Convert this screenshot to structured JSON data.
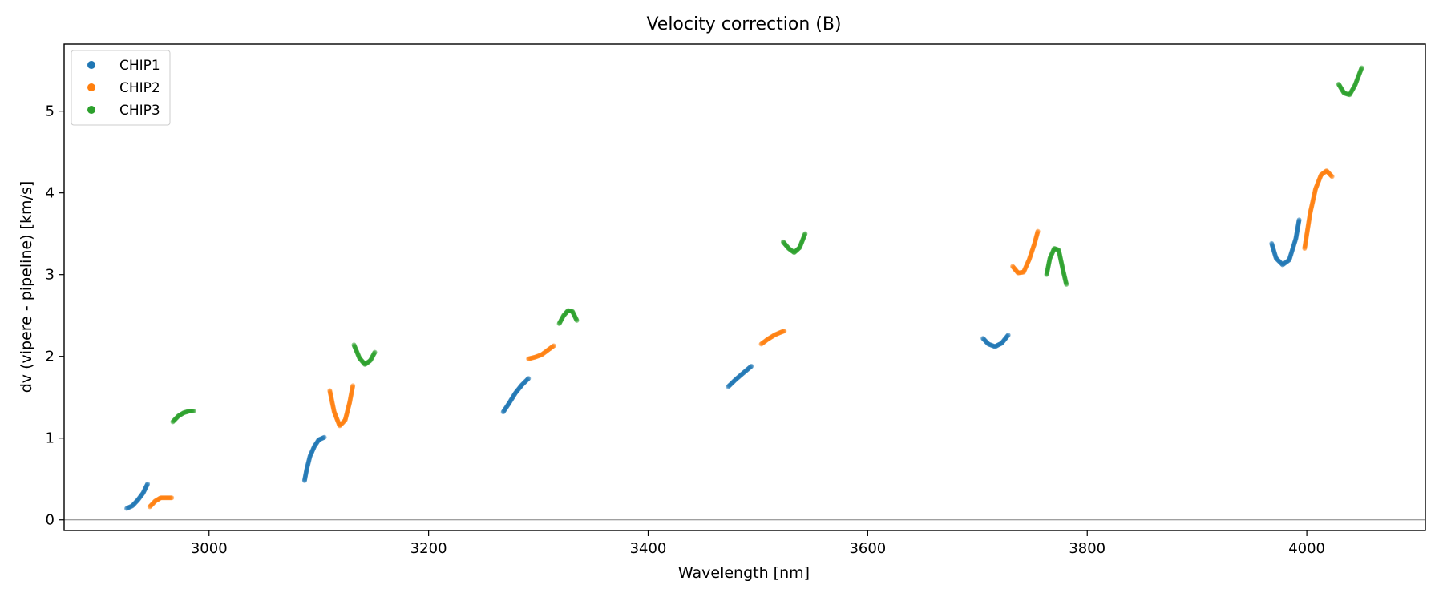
{
  "chart_data": {
    "type": "scatter",
    "title": "Velocity correction (B)",
    "xlabel": "Wavelength [nm]",
    "ylabel": "dv (vipere - pipeline) [km/s]",
    "xlim": [
      2868,
      4108
    ],
    "ylim": [
      -0.13,
      5.82
    ],
    "x_ticks": [
      3000,
      3200,
      3400,
      3600,
      3800,
      4000
    ],
    "y_ticks": [
      0,
      1,
      2,
      3,
      4,
      5
    ],
    "zero_line": true,
    "grid": false,
    "legend_position": "upper left",
    "series": [
      {
        "name": "CHIP1",
        "color": "#1f77b4",
        "segments": [
          [
            [
              2925,
              0.14
            ],
            [
              2930,
              0.17
            ],
            [
              2935,
              0.24
            ],
            [
              2940,
              0.33
            ],
            [
              2944,
              0.44
            ]
          ],
          [
            [
              3087,
              0.48
            ],
            [
              3089,
              0.62
            ],
            [
              3092,
              0.78
            ],
            [
              3096,
              0.9
            ],
            [
              3100,
              0.98
            ],
            [
              3105,
              1.01
            ]
          ],
          [
            [
              3268,
              1.32
            ],
            [
              3273,
              1.42
            ],
            [
              3279,
              1.55
            ],
            [
              3285,
              1.65
            ],
            [
              3291,
              1.73
            ]
          ],
          [
            [
              3473,
              1.63
            ],
            [
              3480,
              1.72
            ],
            [
              3487,
              1.8
            ],
            [
              3494,
              1.88
            ]
          ],
          [
            [
              3705,
              2.22
            ],
            [
              3710,
              2.15
            ],
            [
              3716,
              2.12
            ],
            [
              3722,
              2.16
            ],
            [
              3728,
              2.26
            ]
          ],
          [
            [
              3968,
              3.38
            ],
            [
              3972,
              3.2
            ],
            [
              3978,
              3.12
            ],
            [
              3984,
              3.18
            ],
            [
              3990,
              3.44
            ],
            [
              3993,
              3.67
            ]
          ]
        ]
      },
      {
        "name": "CHIP2",
        "color": "#ff7f0e",
        "segments": [
          [
            [
              2946,
              0.16
            ],
            [
              2951,
              0.23
            ],
            [
              2956,
              0.27
            ],
            [
              2961,
              0.27
            ],
            [
              2966,
              0.27
            ]
          ],
          [
            [
              3110,
              1.58
            ],
            [
              3114,
              1.32
            ],
            [
              3119,
              1.15
            ],
            [
              3124,
              1.22
            ],
            [
              3128,
              1.43
            ],
            [
              3131,
              1.64
            ]
          ],
          [
            [
              3291,
              1.97
            ],
            [
              3297,
              1.99
            ],
            [
              3303,
              2.02
            ],
            [
              3309,
              2.08
            ],
            [
              3314,
              2.13
            ]
          ],
          [
            [
              3503,
              2.15
            ],
            [
              3509,
              2.21
            ],
            [
              3515,
              2.26
            ],
            [
              3520,
              2.29
            ],
            [
              3524,
              2.31
            ]
          ],
          [
            [
              3732,
              3.1
            ],
            [
              3737,
              3.02
            ],
            [
              3742,
              3.03
            ],
            [
              3747,
              3.18
            ],
            [
              3752,
              3.38
            ],
            [
              3755,
              3.53
            ]
          ],
          [
            [
              3998,
              3.32
            ],
            [
              4003,
              3.75
            ],
            [
              4008,
              4.05
            ],
            [
              4013,
              4.22
            ],
            [
              4018,
              4.27
            ],
            [
              4023,
              4.2
            ]
          ]
        ]
      },
      {
        "name": "CHIP3",
        "color": "#2ca02c",
        "segments": [
          [
            [
              2967,
              1.2
            ],
            [
              2972,
              1.27
            ],
            [
              2977,
              1.31
            ],
            [
              2982,
              1.33
            ],
            [
              2986,
              1.33
            ]
          ],
          [
            [
              3132,
              2.14
            ],
            [
              3137,
              1.98
            ],
            [
              3142,
              1.9
            ],
            [
              3147,
              1.95
            ],
            [
              3151,
              2.05
            ]
          ],
          [
            [
              3319,
              2.4
            ],
            [
              3323,
              2.5
            ],
            [
              3327,
              2.56
            ],
            [
              3331,
              2.55
            ],
            [
              3335,
              2.44
            ]
          ],
          [
            [
              3523,
              3.4
            ],
            [
              3528,
              3.32
            ],
            [
              3533,
              3.27
            ],
            [
              3538,
              3.33
            ],
            [
              3543,
              3.5
            ]
          ],
          [
            [
              3763,
              3.0
            ],
            [
              3766,
              3.2
            ],
            [
              3770,
              3.32
            ],
            [
              3774,
              3.3
            ],
            [
              3778,
              3.05
            ],
            [
              3781,
              2.88
            ]
          ],
          [
            [
              4029,
              5.33
            ],
            [
              4034,
              5.22
            ],
            [
              4039,
              5.2
            ],
            [
              4044,
              5.32
            ],
            [
              4050,
              5.53
            ]
          ]
        ]
      }
    ]
  }
}
